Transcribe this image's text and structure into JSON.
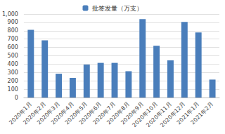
{
  "chart_data": {
    "type": "bar",
    "categories": [
      "2020年1月",
      "2020年2月",
      "2020年3月",
      "2020年4月",
      "2020年5月",
      "2020年6月",
      "2020年7月",
      "2020年8月",
      "2020年9月",
      "2020年10月",
      "2020年11月",
      "2020年12月",
      "2021年1月",
      "2021年2月"
    ],
    "series": [
      {
        "name": "批签发量（万支）",
        "color": "#4a7ebb",
        "values": [
          810,
          685,
          285,
          235,
          395,
          415,
          415,
          315,
          940,
          620,
          445,
          905,
          780,
          215
        ]
      }
    ],
    "ylim": [
      0,
      1000
    ],
    "yticks": [
      0,
      100,
      200,
      300,
      400,
      500,
      600,
      700,
      800,
      900,
      1000
    ],
    "grid": true,
    "legend": "top"
  }
}
